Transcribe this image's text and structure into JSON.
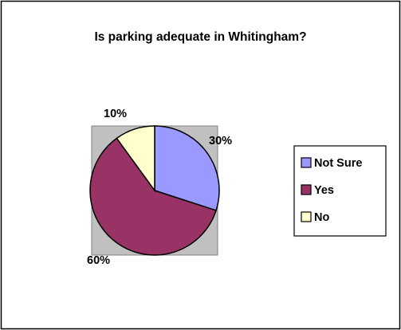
{
  "chart_data": {
    "type": "pie",
    "title": "Is parking adequate in Whitingham?",
    "categories": [
      "Not Sure",
      "Yes",
      "No"
    ],
    "values": [
      30,
      60,
      10
    ],
    "data_labels": [
      "30%",
      "60%",
      "10%"
    ],
    "colors": [
      "#9999ff",
      "#993366",
      "#ffffcc"
    ],
    "plot_background": "#c0c0c0",
    "legend_position": "right",
    "grid": false
  }
}
